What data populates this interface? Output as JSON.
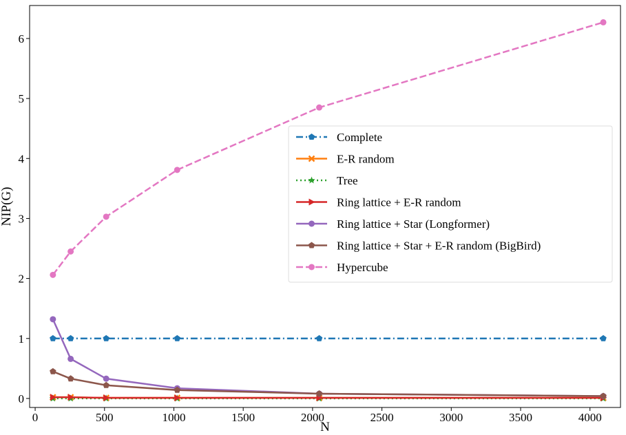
{
  "chart_data": {
    "type": "line",
    "xlabel": "N",
    "ylabel": "NIP(G)",
    "xlim": [
      -40,
      4220
    ],
    "ylim": [
      -0.15,
      6.55
    ],
    "xticks": [
      0,
      500,
      1000,
      1500,
      2000,
      2500,
      3000,
      3500,
      4000
    ],
    "yticks": [
      0,
      1,
      2,
      3,
      4,
      5,
      6
    ],
    "grid": false,
    "legend_position": "center-right",
    "x": [
      128,
      256,
      512,
      1024,
      2048,
      4096
    ],
    "series": [
      {
        "name": "Complete",
        "values": [
          1,
          1,
          1,
          1,
          1,
          1
        ],
        "color": "#1f77b4",
        "dash": "dashdot",
        "marker": "pentagon"
      },
      {
        "name": "E-R random",
        "values": [
          0.02,
          0.02,
          0.01,
          0.01,
          0.01,
          0.01
        ],
        "color": "#ff7f0e",
        "dash": "solid",
        "marker": "x"
      },
      {
        "name": "Tree",
        "values": [
          0.0,
          0.0,
          0.0,
          0.0,
          0.0,
          0.0
        ],
        "color": "#2ca02c",
        "dash": "dotted",
        "marker": "star"
      },
      {
        "name": "Ring lattice + E-R random",
        "values": [
          0.02,
          0.02,
          0.01,
          0.01,
          0.01,
          0.01
        ],
        "color": "#d62728",
        "dash": "solid",
        "marker": "triangle-right"
      },
      {
        "name": "Ring lattice + Star (Longformer)",
        "values": [
          1.32,
          0.66,
          0.33,
          0.17,
          0.08,
          0.04
        ],
        "color": "#9467bd",
        "dash": "solid",
        "marker": "circle"
      },
      {
        "name": "Ring lattice + Star + E-R random (BigBird)",
        "values": [
          0.45,
          0.33,
          0.22,
          0.14,
          0.08,
          0.04
        ],
        "color": "#8c564b",
        "dash": "solid",
        "marker": "pentagon"
      },
      {
        "name": "Hypercube",
        "values": [
          2.06,
          2.45,
          3.03,
          3.81,
          4.85,
          6.27
        ],
        "color": "#e377c2",
        "dash": "dashed",
        "marker": "circle"
      }
    ]
  }
}
